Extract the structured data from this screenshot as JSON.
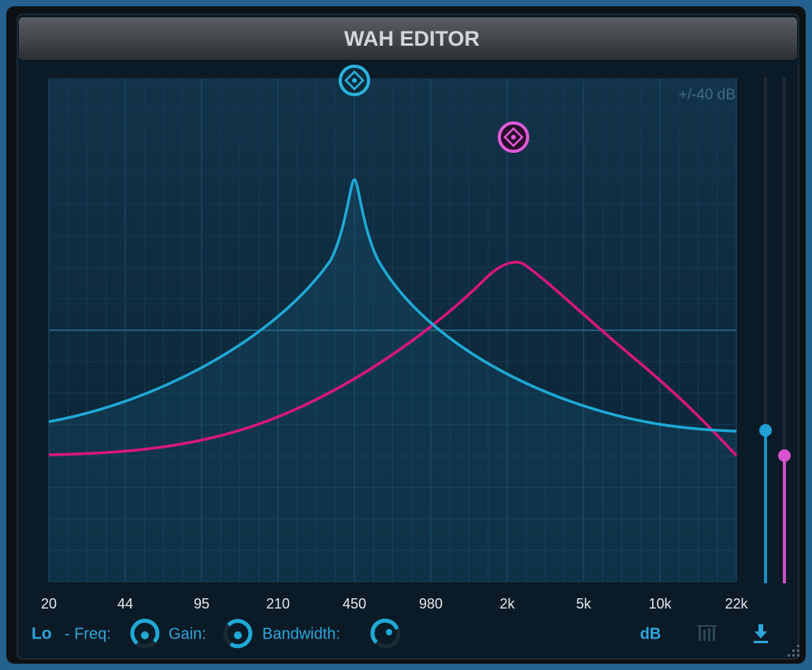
{
  "header": {
    "title": "WAH EDITOR"
  },
  "graph": {
    "range_label": "+/-40 dB",
    "x_labels": [
      "20",
      "44",
      "95",
      "210",
      "450",
      "980",
      "2k",
      "5k",
      "10k",
      "22k"
    ]
  },
  "footer": {
    "band": "Lo",
    "freq_label": "- Freq:",
    "gain_label": "Gain:",
    "bandwidth_label": "Bandwidth:",
    "db_button": "dB"
  }
}
